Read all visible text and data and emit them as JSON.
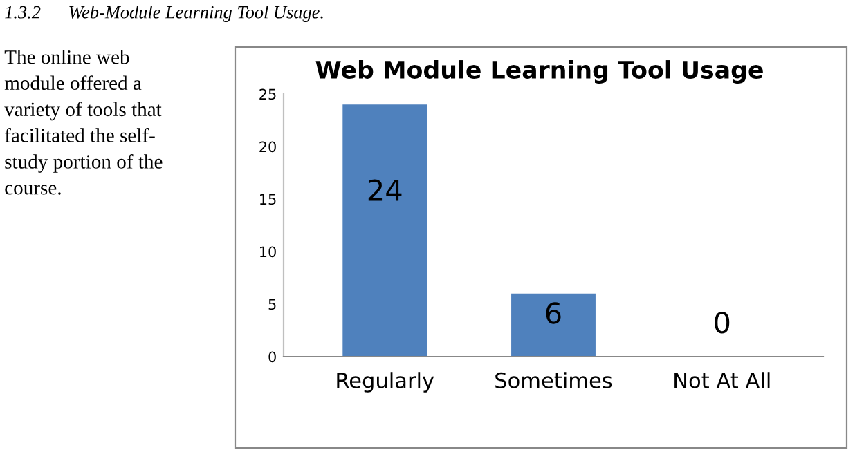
{
  "chart_data": {
    "type": "bar",
    "title": "Web Module Learning Tool Usage",
    "categories": [
      "Regularly",
      "Sometimes",
      "Not At All"
    ],
    "values": [
      24,
      6,
      0
    ],
    "color": "#4f81bd",
    "ylim": [
      0,
      25
    ],
    "yticks": [
      0,
      5,
      10,
      15,
      20,
      25
    ],
    "grid": false,
    "data_labels": true,
    "annotations": [
      "1.3.2      Web-Module Learning Tool Usage.",
      "The online web\nmodule offered a\nvariety of tools that\nfacilitated the self-\nstudy portion of the\ncourse."
    ]
  }
}
